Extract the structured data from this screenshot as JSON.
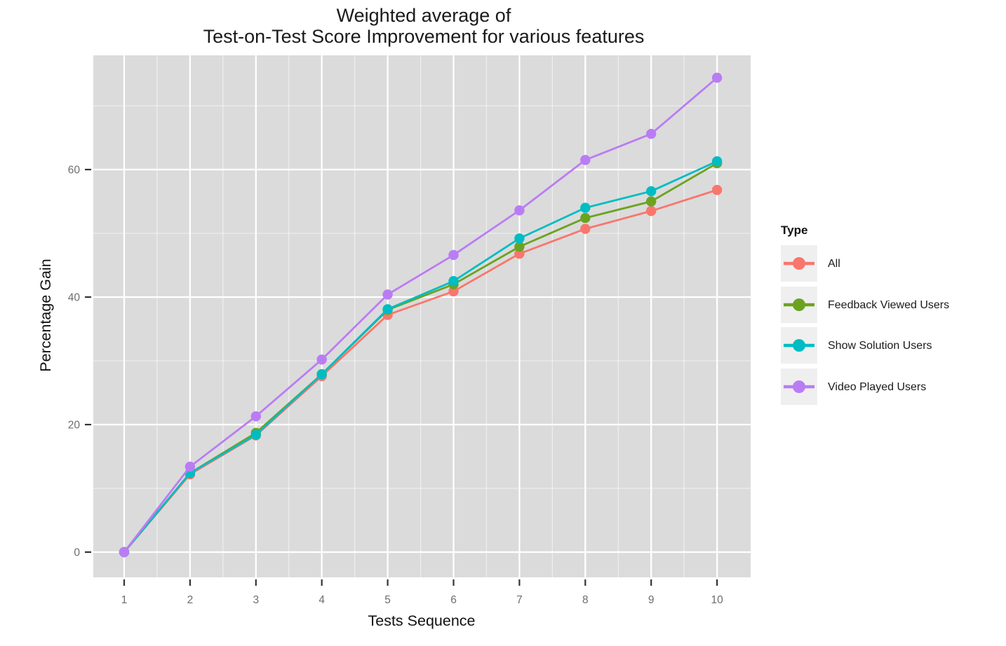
{
  "title": {
    "line1": "Weighted average of",
    "line2": "Test-on-Test Score Improvement for various features"
  },
  "chart_data": {
    "type": "line",
    "title_line1": "Weighted average of",
    "title_line2": "Test-on-Test Score Improvement for various features",
    "xlabel": "Tests Sequence",
    "ylabel": "Percentage Gain",
    "legend_title": "Type",
    "legend_position": "right",
    "grid": true,
    "x": [
      1,
      2,
      3,
      4,
      5,
      6,
      7,
      8,
      9,
      10
    ],
    "x_tick_labels": [
      "1",
      "2",
      "3",
      "4",
      "5",
      "6",
      "7",
      "8",
      "9",
      "10"
    ],
    "y_tick_labels": [
      "0",
      "20",
      "40",
      "60"
    ],
    "y_major": [
      0,
      20,
      40,
      60
    ],
    "y_minor": [
      10,
      30,
      50,
      70
    ],
    "x_minor": [
      1.5,
      2.5,
      3.5,
      4.5,
      5.5,
      6.5,
      7.5,
      8.5,
      9.5
    ],
    "xlim": [
      0.53,
      10.5
    ],
    "ylim": [
      -4,
      78
    ],
    "series": [
      {
        "name": "All",
        "color": "#F8766D",
        "values": [
          0,
          12.2,
          18.3,
          27.6,
          37.2,
          40.9,
          46.8,
          50.7,
          53.5,
          56.8
        ]
      },
      {
        "name": "Feedback Viewed Users",
        "color": "#6BA321",
        "values": [
          0,
          12.4,
          18.7,
          27.9,
          38.0,
          42.0,
          47.9,
          52.4,
          55.0,
          61.0
        ]
      },
      {
        "name": "Show Solution Users",
        "color": "#00BCC3",
        "values": [
          0,
          12.4,
          18.4,
          27.9,
          38.1,
          42.5,
          49.2,
          54.0,
          56.6,
          61.3
        ]
      },
      {
        "name": "Video Played Users",
        "color": "#BA7CF4",
        "values": [
          0,
          13.4,
          21.3,
          30.2,
          40.4,
          46.6,
          53.6,
          61.5,
          65.6,
          74.4
        ]
      }
    ],
    "panel_bg": "#DBDBDB",
    "grid_major_color": "#FFFFFF",
    "grid_minor_color": "#FFFFFF",
    "tick_color": "#333333",
    "tick_label_color": "#6E6E6E",
    "legend_key_bg": "#EFEFEF"
  }
}
